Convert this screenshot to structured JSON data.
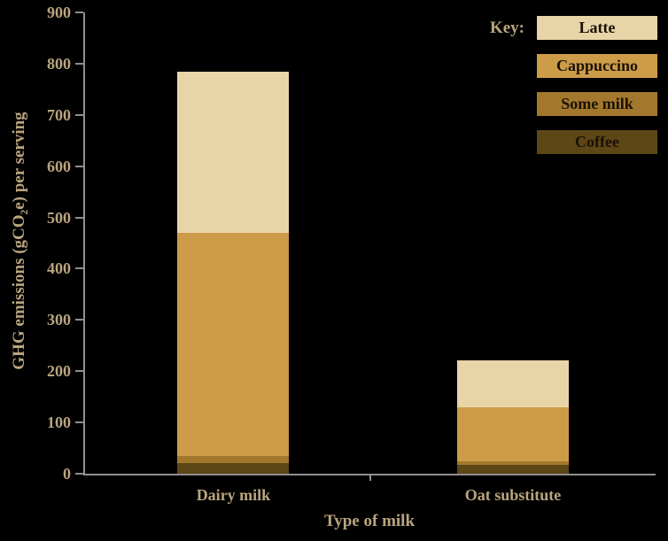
{
  "chart_data": {
    "type": "bar",
    "stacked": true,
    "title": "",
    "xlabel": "Type of milk",
    "ylabel": "GHG emissions (gCO₂e) per serving",
    "categories": [
      "Dairy milk",
      "Oat substitute"
    ],
    "series": [
      {
        "name": "Coffee",
        "color": "#5e4717",
        "values": [
          20,
          18
        ]
      },
      {
        "name": "Some milk",
        "color": "#a4782c",
        "values": [
          15,
          7
        ]
      },
      {
        "name": "Cappuccino",
        "color": "#cd9c49",
        "values": [
          435,
          105
        ]
      },
      {
        "name": "Latte",
        "color": "#e8d5a7",
        "values": [
          315,
          92
        ]
      }
    ],
    "ylim": [
      0,
      900
    ],
    "ytick_step": 100,
    "grid": false,
    "legend": {
      "label": "Key:",
      "position": "top-right",
      "entries": [
        "Latte",
        "Cappuccino",
        "Some milk",
        "Coffee"
      ]
    },
    "colors": {
      "background": "#000000",
      "axis": "#8f8f8f",
      "text": "#b9a57e",
      "legend_text": "#1a1106"
    }
  }
}
